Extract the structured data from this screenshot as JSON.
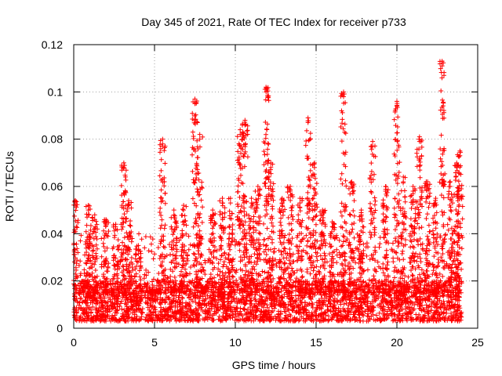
{
  "chart_data": {
    "type": "scatter",
    "title": "Day 345 of 2021, Rate Of TEC Index for receiver p733",
    "xlabel": "GPS time / hours",
    "ylabel": "ROTI / TECUs",
    "xlim": [
      0,
      25
    ],
    "ylim": [
      0,
      0.12
    ],
    "xticks": [
      0,
      5,
      10,
      15,
      20,
      25
    ],
    "xtick_labels": [
      "0",
      "5",
      "10",
      "15",
      "20",
      "25"
    ],
    "yticks": [
      0,
      0.02,
      0.04,
      0.06,
      0.08,
      0.1,
      0.12
    ],
    "ytick_labels": [
      "0",
      "0.02",
      "0.04",
      "0.06",
      "0.08",
      "0.1",
      "0.12"
    ],
    "grid": true,
    "marker": "plus",
    "point_color": "#ff0000",
    "x_range": [
      0,
      24
    ],
    "baseline_band": [
      0.003,
      0.02
    ],
    "peaks": [
      {
        "x": 0.1,
        "y": 0.054
      },
      {
        "x": 0.9,
        "y": 0.052
      },
      {
        "x": 1.3,
        "y": 0.048
      },
      {
        "x": 2.0,
        "y": 0.046
      },
      {
        "x": 2.6,
        "y": 0.044
      },
      {
        "x": 3.1,
        "y": 0.07
      },
      {
        "x": 3.4,
        "y": 0.054
      },
      {
        "x": 4.0,
        "y": 0.035
      },
      {
        "x": 5.5,
        "y": 0.08
      },
      {
        "x": 6.2,
        "y": 0.05
      },
      {
        "x": 6.8,
        "y": 0.052
      },
      {
        "x": 7.5,
        "y": 0.097
      },
      {
        "x": 7.8,
        "y": 0.082
      },
      {
        "x": 8.6,
        "y": 0.05
      },
      {
        "x": 9.2,
        "y": 0.055
      },
      {
        "x": 9.7,
        "y": 0.055
      },
      {
        "x": 10.3,
        "y": 0.084
      },
      {
        "x": 10.6,
        "y": 0.088
      },
      {
        "x": 11.0,
        "y": 0.055
      },
      {
        "x": 11.4,
        "y": 0.06
      },
      {
        "x": 11.9,
        "y": 0.102
      },
      {
        "x": 12.2,
        "y": 0.07
      },
      {
        "x": 12.9,
        "y": 0.055
      },
      {
        "x": 13.4,
        "y": 0.06
      },
      {
        "x": 14.0,
        "y": 0.055
      },
      {
        "x": 14.5,
        "y": 0.089
      },
      {
        "x": 14.9,
        "y": 0.07
      },
      {
        "x": 15.4,
        "y": 0.05
      },
      {
        "x": 16.0,
        "y": 0.045
      },
      {
        "x": 16.7,
        "y": 0.1
      },
      {
        "x": 17.2,
        "y": 0.062
      },
      {
        "x": 17.8,
        "y": 0.05
      },
      {
        "x": 18.5,
        "y": 0.079
      },
      {
        "x": 19.3,
        "y": 0.06
      },
      {
        "x": 20.0,
        "y": 0.096
      },
      {
        "x": 20.4,
        "y": 0.064
      },
      {
        "x": 21.0,
        "y": 0.06
      },
      {
        "x": 21.4,
        "y": 0.081
      },
      {
        "x": 21.9,
        "y": 0.062
      },
      {
        "x": 22.4,
        "y": 0.055
      },
      {
        "x": 22.8,
        "y": 0.113
      },
      {
        "x": 23.3,
        "y": 0.062
      },
      {
        "x": 23.7,
        "y": 0.07
      },
      {
        "x": 23.9,
        "y": 0.075
      }
    ]
  }
}
